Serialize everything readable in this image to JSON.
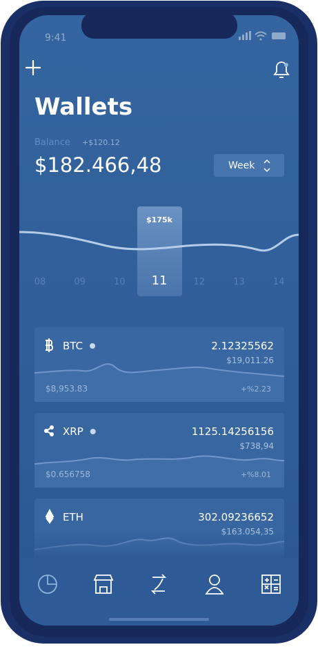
{
  "status_bar": {
    "time": "9:41"
  },
  "header": {
    "title": "Wallets",
    "balance_label": "Balance",
    "balance_change": "+$120.12",
    "balance": "$182.466,48",
    "period": "Week"
  },
  "chart": {
    "highlight_label": "$175k",
    "days": [
      "08",
      "09",
      "10",
      "11",
      "12",
      "13",
      "14"
    ],
    "selected_day": 3
  },
  "wallets": [
    {
      "symbol": "BTC",
      "amount": "2.12325562",
      "fiat": "$19,011.26",
      "price": "$8,953.83",
      "change": "+%2.23"
    },
    {
      "symbol": "XRP",
      "amount": "1125.14256156",
      "fiat": "$738,94",
      "price": "$0.656758",
      "change": "+%8.01"
    },
    {
      "symbol": "ETH",
      "amount": "302.09236652",
      "fiat": "$163.054,35"
    }
  ]
}
